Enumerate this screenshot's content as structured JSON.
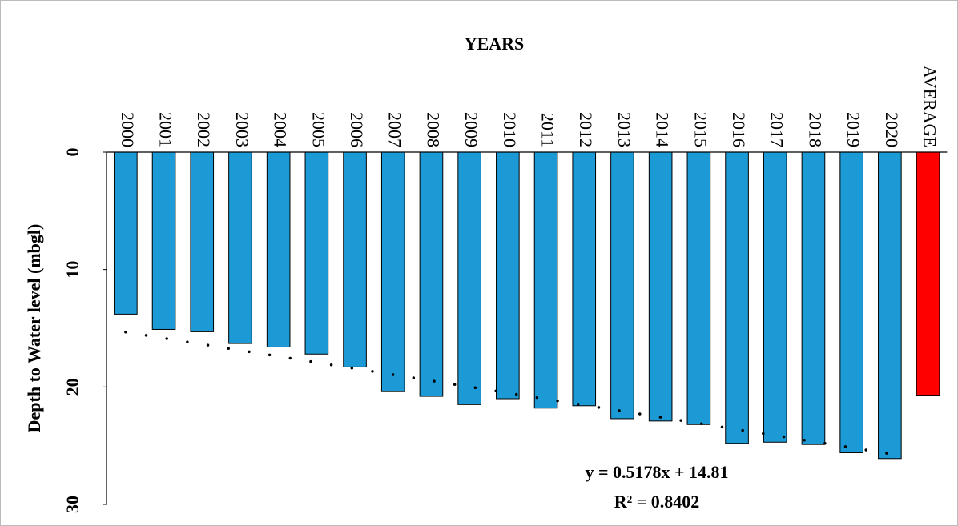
{
  "chart_data": {
    "type": "bar",
    "title": "YEARS",
    "y_label": "Depth to Water level (mbgl)",
    "categories": [
      "2000",
      "2001",
      "2002",
      "2003",
      "2004",
      "2005",
      "2006",
      "2007",
      "2008",
      "2009",
      "2010",
      "2011",
      "2012",
      "2013",
      "2014",
      "2015",
      "2016",
      "2017",
      "2018",
      "2019",
      "2020",
      "AVERAGE"
    ],
    "values": [
      13.8,
      15.1,
      15.3,
      16.3,
      16.6,
      17.2,
      18.3,
      20.4,
      20.8,
      21.5,
      21.0,
      21.8,
      21.6,
      22.7,
      22.9,
      23.2,
      24.8,
      24.7,
      24.9,
      25.6,
      26.1,
      20.7
    ],
    "bar_colors": [
      "#1b9ad6",
      "#1b9ad6",
      "#1b9ad6",
      "#1b9ad6",
      "#1b9ad6",
      "#1b9ad6",
      "#1b9ad6",
      "#1b9ad6",
      "#1b9ad6",
      "#1b9ad6",
      "#1b9ad6",
      "#1b9ad6",
      "#1b9ad6",
      "#1b9ad6",
      "#1b9ad6",
      "#1b9ad6",
      "#1b9ad6",
      "#1b9ad6",
      "#1b9ad6",
      "#1b9ad6",
      "#1b9ad6",
      "#ff0000"
    ],
    "ylim": [
      0,
      30
    ],
    "yticks": [
      0,
      10,
      20,
      30
    ],
    "y_inverted": true,
    "grid": false,
    "trendline": {
      "equation": "y = 0.5178x + 14.81",
      "r_squared": "R² = 0.8402",
      "slope": 0.5178,
      "intercept": 14.81,
      "points": 21
    }
  }
}
